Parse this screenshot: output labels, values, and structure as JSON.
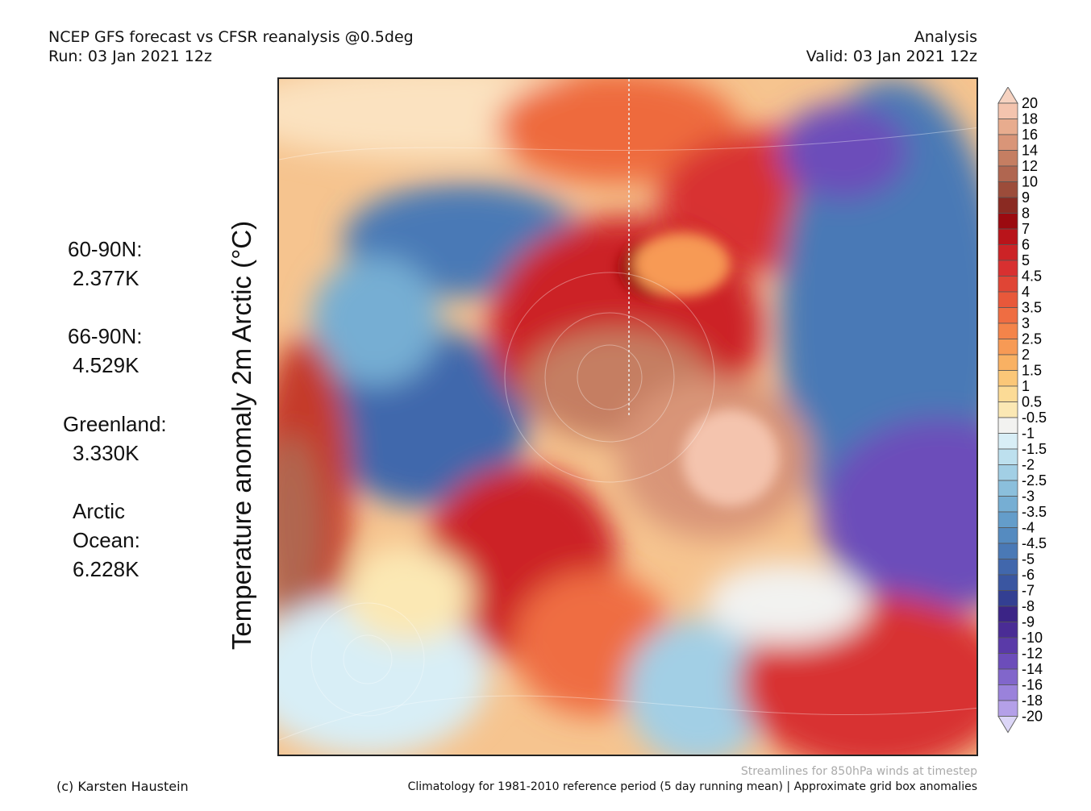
{
  "header": {
    "title": "NCEP GFS forecast vs CFSR reanalysis @0.5deg",
    "run": "Run: 03 Jan 2021 12z",
    "mode": "Analysis",
    "valid": "Valid: 03 Jan 2021 12z"
  },
  "axis_label": "Temperature anomaly 2m Arctic (°C)",
  "stats": [
    {
      "region": "60-90N:",
      "value": "2.377K"
    },
    {
      "region": "66-90N:",
      "value": "4.529K"
    },
    {
      "region": "Greenland:",
      "value": "3.330K"
    },
    {
      "region": "Arctic Ocean:",
      "region_line1": "Arctic",
      "region_line2": "Ocean:",
      "value": "6.228K"
    }
  ],
  "colorbar": {
    "labels": [
      "20",
      "18",
      "16",
      "14",
      "12",
      "10",
      "9",
      "8",
      "7",
      "6",
      "5",
      "4.5",
      "4",
      "3.5",
      "3",
      "2.5",
      "2",
      "1.5",
      "1",
      "0.5",
      "-0.5",
      "-1",
      "-1.5",
      "-2",
      "-2.5",
      "-3",
      "-3.5",
      "-4",
      "-4.5",
      "-5",
      "-6",
      "-7",
      "-8",
      "-9",
      "-10",
      "-12",
      "-14",
      "-16",
      "-18",
      "-20"
    ],
    "colors": [
      "#f4c4ae",
      "#e8ac8e",
      "#d99578",
      "#c57e62",
      "#b06650",
      "#9c4c3a",
      "#8a2a22",
      "#9b0a10",
      "#b9141a",
      "#cc2326",
      "#d83030",
      "#e04535",
      "#e8583a",
      "#ef6d42",
      "#f4844a",
      "#f79a55",
      "#f9b163",
      "#fbc778",
      "#fcdb96",
      "#fbe8b4",
      "#f2f2f0",
      "#d8eef6",
      "#bde0ee",
      "#a2cfe5",
      "#8bbfdc",
      "#76aed3",
      "#649dca",
      "#558bc0",
      "#4a79b6",
      "#4167ac",
      "#3a56a1",
      "#333f92",
      "#3b2486",
      "#4a2c95",
      "#5a3aa8",
      "#6c4dba",
      "#8166cb",
      "#9a82db",
      "#b4a0e8",
      "#cfc3f2"
    ],
    "top_arrow_color": "#f6d2c0",
    "bottom_arrow_color": "#dcd6f7"
  },
  "footer": {
    "credit": "(c) Karsten Haustein",
    "streamlines": "Streamlines for 850hPa winds at timestep",
    "climatology": "Climatology for 1981-2010 reference period (5 day running mean) | Approximate grid box anomalies"
  }
}
